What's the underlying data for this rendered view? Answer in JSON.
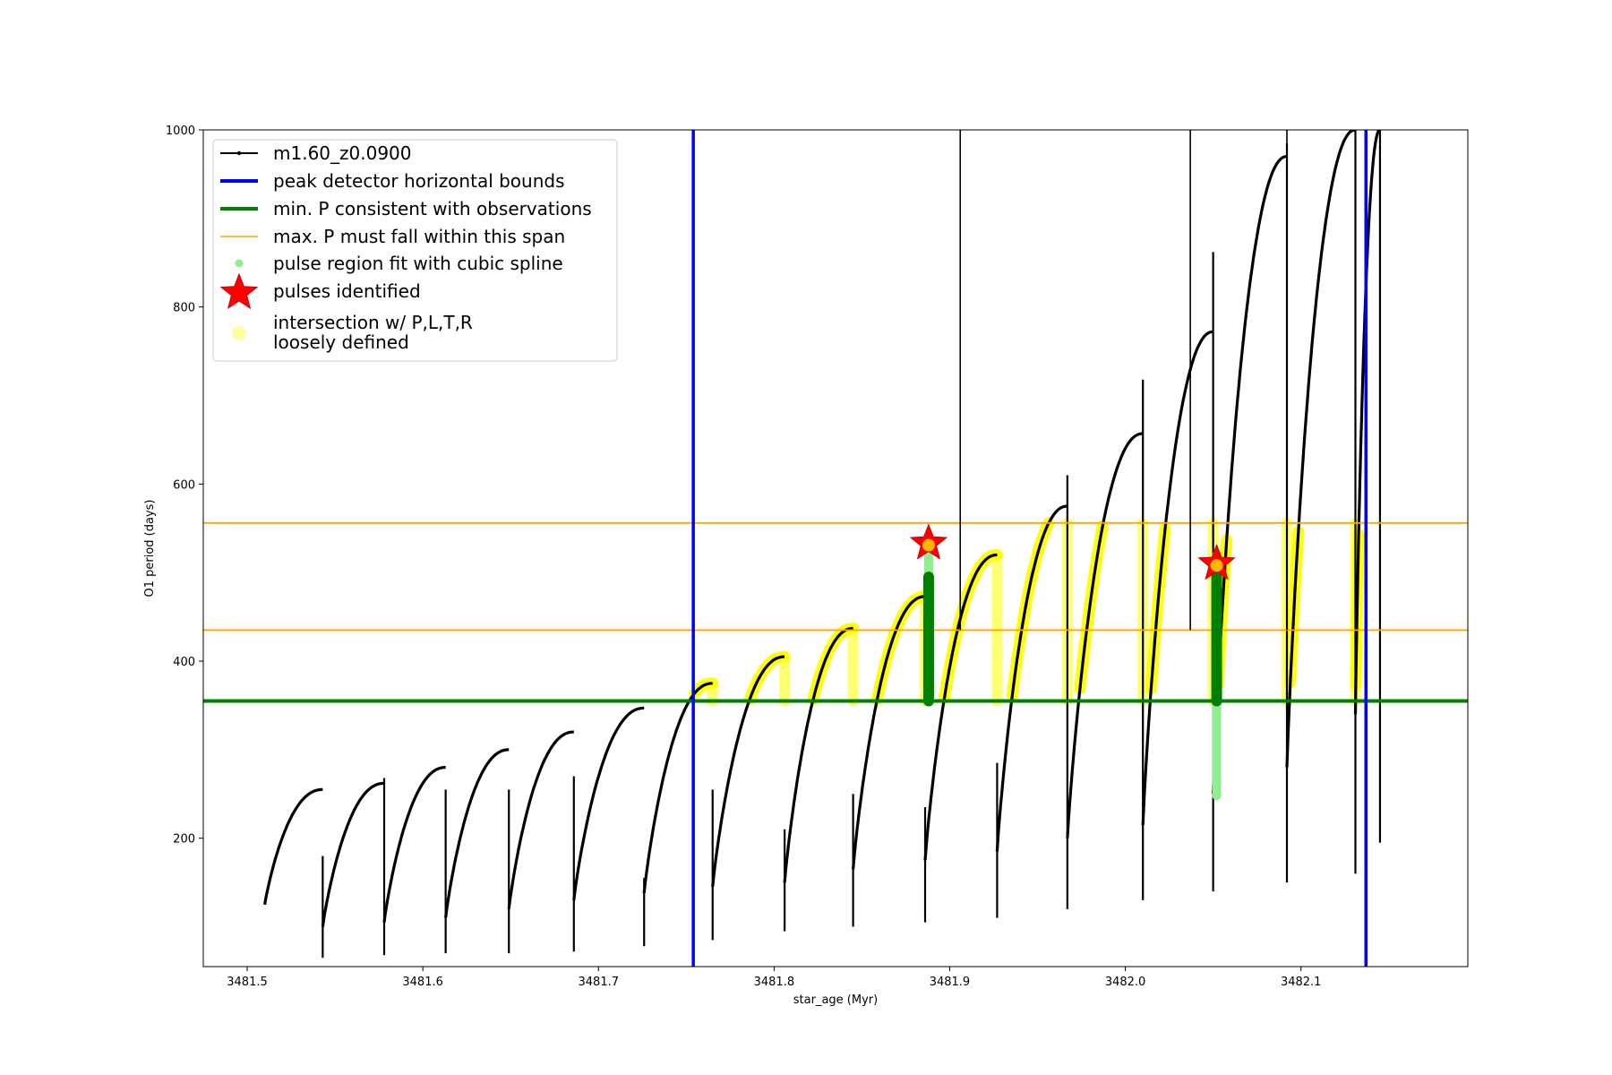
{
  "chart_data": {
    "type": "line",
    "title": "",
    "xlabel": "star_age (Myr)",
    "ylabel": "O1 period (days)",
    "xlim": [
      3481.475,
      3482.195
    ],
    "ylim": [
      55,
      1000
    ],
    "x_ticks": [
      {
        "value": 3481.5,
        "label": "3481.5"
      },
      {
        "value": 3481.6,
        "label": "3481.6"
      },
      {
        "value": 3481.7,
        "label": "3481.7"
      },
      {
        "value": 3481.8,
        "label": "3481.8"
      },
      {
        "value": 3481.9,
        "label": "3481.9"
      },
      {
        "value": 3482.0,
        "label": "3482.0"
      },
      {
        "value": 3482.1,
        "label": "3482.1"
      }
    ],
    "y_ticks": [
      {
        "value": 200,
        "label": "200"
      },
      {
        "value": 400,
        "label": "400"
      },
      {
        "value": 600,
        "label": "600"
      },
      {
        "value": 800,
        "label": "800"
      },
      {
        "value": 1000,
        "label": "1000"
      }
    ],
    "grid": false,
    "legend_position": "top-left",
    "legend": [
      {
        "key": "track",
        "label": "m1.60_z0.0900",
        "color": "#000000",
        "style": "line-marker"
      },
      {
        "key": "bounds",
        "label": "peak detector horizontal bounds",
        "color": "#0000ff",
        "style": "line-thick"
      },
      {
        "key": "minp",
        "label": "min. P consistent with observations",
        "color": "#008000",
        "style": "line-thick"
      },
      {
        "key": "maxp",
        "label": "max. P must fall within this span",
        "color": "#ffa500",
        "style": "line"
      },
      {
        "key": "spline",
        "label": "pulse region fit with cubic spline",
        "color": "#90ee90",
        "style": "dot"
      },
      {
        "key": "pulses",
        "label": "pulses identified",
        "color": "#ff0000",
        "style": "star"
      },
      {
        "key": "intersection",
        "label": "intersection w/ P,L,T,R",
        "label2": "loosely defined",
        "color": "#ffffa0",
        "style": "big-dot"
      }
    ],
    "colors": {
      "track": "#000000",
      "bounds": "#0000ff",
      "minp": "#008000",
      "maxp": "#ffa500",
      "intersection": "#ffff00",
      "spline": "#90ee90",
      "pulse_region": "#008000",
      "star": "#ff0000"
    },
    "horizontal_lines": {
      "min_p": 355,
      "max_p_span": [
        435,
        556
      ]
    },
    "vertical_lines": {
      "bounds": [
        3481.754,
        3482.137
      ],
      "thin": [
        3481.906,
        3482.037,
        3482.092
      ]
    },
    "cycles": [
      {
        "start": 3481.51,
        "end": 3481.543,
        "start_val": 125,
        "peak": 255,
        "dip_min": 65,
        "spike_max": 180
      },
      {
        "start": 3481.543,
        "end": 3481.578,
        "start_val": 100,
        "peak": 262,
        "dip_min": 68,
        "spike_max": 268
      },
      {
        "start": 3481.578,
        "end": 3481.613,
        "start_val": 105,
        "peak": 280,
        "dip_min": 70,
        "spike_max": 255
      },
      {
        "start": 3481.613,
        "end": 3481.649,
        "start_val": 110,
        "peak": 300,
        "dip_min": 70,
        "spike_max": 255
      },
      {
        "start": 3481.649,
        "end": 3481.686,
        "start_val": 120,
        "peak": 320,
        "dip_min": 72,
        "spike_max": 270
      },
      {
        "start": 3481.686,
        "end": 3481.726,
        "start_val": 130,
        "peak": 347,
        "dip_min": 78,
        "spike_max": 155
      },
      {
        "start": 3481.726,
        "end": 3481.765,
        "start_val": 138,
        "peak": 375,
        "dip_min": 85,
        "spike_max": 255
      },
      {
        "start": 3481.765,
        "end": 3481.806,
        "start_val": 145,
        "peak": 405,
        "dip_min": 95,
        "spike_max": 210
      },
      {
        "start": 3481.806,
        "end": 3481.845,
        "start_val": 150,
        "peak": 437,
        "dip_min": 100,
        "spike_max": 250
      },
      {
        "start": 3481.845,
        "end": 3481.886,
        "start_val": 165,
        "peak": 473,
        "dip_min": 105,
        "spike_max": 235
      },
      {
        "start": 3481.886,
        "end": 3481.927,
        "start_val": 175,
        "peak": 520,
        "dip_min": 110,
        "spike_max": 285
      },
      {
        "start": 3481.927,
        "end": 3481.967,
        "start_val": 185,
        "peak": 575,
        "dip_min": 120,
        "spike_max": 610
      },
      {
        "start": 3481.967,
        "end": 3482.01,
        "start_val": 200,
        "peak": 657,
        "dip_min": 130,
        "spike_max": 718
      },
      {
        "start": 3482.01,
        "end": 3482.05,
        "start_val": 215,
        "peak": 772,
        "dip_min": 140,
        "spike_max": 862
      },
      {
        "start": 3482.05,
        "end": 3482.092,
        "start_val": 250,
        "peak": 970,
        "dip_min": 150,
        "spike_max": 985
      },
      {
        "start": 3482.092,
        "end": 3482.131,
        "start_val": 280,
        "peak": 1000,
        "dip_min": 160,
        "spike_max": 1000
      },
      {
        "start": 3482.131,
        "end": 3482.145,
        "start_val": 340,
        "peak": 1000,
        "dip_min": 195,
        "spike_max": 1000
      }
    ],
    "pulses_identified": [
      {
        "x": 3481.888,
        "y": 533
      },
      {
        "x": 3482.052,
        "y": 510
      }
    ],
    "spline_regions": [
      {
        "x": 3481.888,
        "y_min": 355,
        "y_max": 530
      },
      {
        "x": 3482.052,
        "y_min": 248,
        "y_max": 520
      }
    ],
    "pulse_regions_green": [
      {
        "x": 3481.888,
        "y_min": 355,
        "y_max": 495
      },
      {
        "x": 3482.052,
        "y_min": 355,
        "y_max": 495
      }
    ]
  }
}
